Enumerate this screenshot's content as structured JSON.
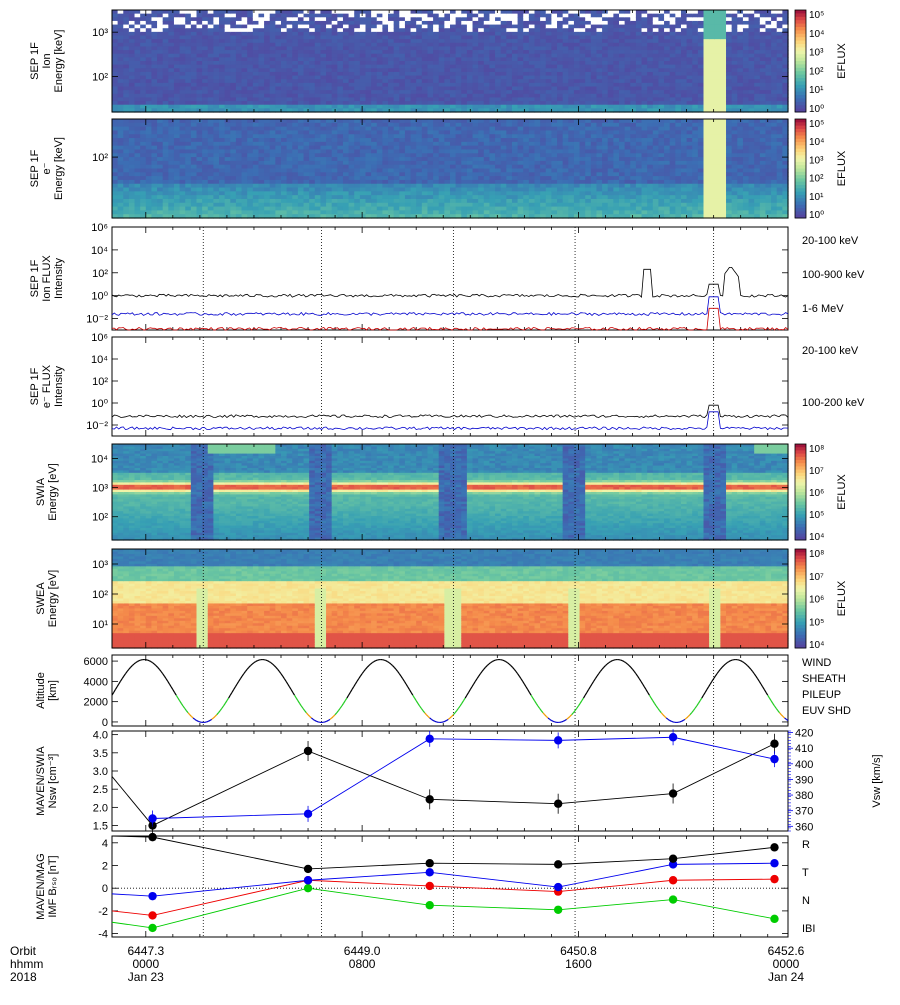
{
  "chart_data": [
    {
      "type": "heatmap",
      "panel": "sep-ion-spectrogram",
      "ylabel_lines": [
        "SEP 1F",
        "Ion",
        "Energy [keV]"
      ],
      "yticks": [
        "10³",
        "10²"
      ],
      "colorbar_label": "EFLUX",
      "colorbar_ticks": [
        "10⁵",
        "10⁴",
        "10³",
        "10²",
        "10¹",
        "10⁰"
      ]
    },
    {
      "type": "heatmap",
      "panel": "sep-electron-spectrogram",
      "ylabel_lines": [
        "SEP 1F",
        "e⁻",
        "Energy [keV]"
      ],
      "yticks": [
        "10²"
      ],
      "colorbar_label": "EFLUX",
      "colorbar_ticks": [
        "10⁵",
        "10⁴",
        "10³",
        "10²",
        "10¹",
        "10⁰"
      ]
    },
    {
      "type": "line",
      "panel": "sep-ion-flux",
      "ylabel_lines": [
        "SEP 1F",
        "Ion FLUX",
        "Intensity"
      ],
      "yticks": [
        "10⁶",
        "10⁴",
        "10²",
        "10⁰",
        "10⁻²"
      ],
      "ylog_range": [
        -3,
        6
      ],
      "series": [
        {
          "name": "20-100 keV",
          "color": "#000000",
          "base_log": 0.0
        },
        {
          "name": "100-900 keV",
          "color": "#0000cc",
          "base_log": -1.6
        },
        {
          "name": "1-6 MeV",
          "color": "#cc0000",
          "base_log": -2.9
        }
      ]
    },
    {
      "type": "line",
      "panel": "sep-electron-flux",
      "ylabel_lines": [
        "SEP 1F",
        "e⁻ FLUX",
        "Intensity"
      ],
      "yticks": [
        "10⁶",
        "10⁴",
        "10²",
        "10⁰",
        "10⁻²"
      ],
      "ylog_range": [
        -3,
        6
      ],
      "series": [
        {
          "name": "20-100 keV",
          "color": "#000000",
          "base_log": -1.2
        },
        {
          "name": "100-200 keV",
          "color": "#0000cc",
          "base_log": -2.3
        }
      ]
    },
    {
      "type": "heatmap",
      "panel": "swia-spectrogram",
      "ylabel_lines": [
        "SWIA",
        "Energy [eV]"
      ],
      "yticks": [
        "10⁴",
        "10³",
        "10²"
      ],
      "colorbar_label": "EFLUX",
      "colorbar_ticks": [
        "10⁸",
        "10⁷",
        "10⁶",
        "10⁵",
        "10⁴"
      ]
    },
    {
      "type": "heatmap",
      "panel": "swea-spectrogram",
      "ylabel_lines": [
        "SWEA",
        "Energy [eV]"
      ],
      "yticks": [
        "10³",
        "10²",
        "10¹"
      ],
      "colorbar_label": "EFLUX",
      "colorbar_ticks": [
        "10⁸",
        "10⁷",
        "10⁶",
        "10⁵",
        "10⁴"
      ]
    },
    {
      "type": "line",
      "panel": "altitude",
      "ylabel_lines": [
        "Altitude",
        "[km]"
      ],
      "yticks": [
        "6000",
        "4000",
        "2000",
        "0"
      ],
      "ylim": [
        -400,
        6600
      ],
      "region_legend": [
        {
          "name": "WIND",
          "color": "#000000"
        },
        {
          "name": "SHEATH",
          "color": "#22cc22"
        },
        {
          "name": "PILEUP",
          "color": "#ee9900"
        },
        {
          "name": "EUV SHD",
          "color": "#0000cc"
        }
      ]
    },
    {
      "type": "line",
      "panel": "swia-density-velocity",
      "ylabel_lines": [
        "MAVEN/SWIA",
        "Nsw [cm⁻³]"
      ],
      "right_ylabel": "Vsw [km/s]",
      "yticks": [
        "4.0",
        "3.5",
        "3.0",
        "2.5",
        "2.0",
        "1.5"
      ],
      "ylim": [
        1.35,
        4.1
      ],
      "right_yticks": [
        "420",
        "410",
        "400",
        "390",
        "380",
        "370",
        "360"
      ],
      "right_ylim": [
        357,
        421
      ],
      "x": [
        0.1,
        2.4,
        4.2,
        6.1,
        7.8,
        9.3
      ],
      "series": [
        {
          "name": "Nsw",
          "color": "#000000",
          "values": [
            1.5,
            3.55,
            2.22,
            2.1,
            2.38,
            3.75
          ]
        },
        {
          "name": "Vsw",
          "color": "#0000ee",
          "values": [
            365,
            368,
            416,
            415,
            417,
            403
          ]
        }
      ]
    },
    {
      "type": "line",
      "panel": "mag-imf",
      "ylabel_lines": [
        "MAVEN/MAG",
        "IMF Bᵣₛₒ [nT]"
      ],
      "yticks": [
        "4",
        "2",
        "0",
        "-2",
        "-4"
      ],
      "ylim": [
        -4.3,
        4.6
      ],
      "x": [
        0.1,
        2.4,
        4.2,
        6.1,
        7.8,
        9.3
      ],
      "series": [
        {
          "name": "R",
          "color": "#0000ee",
          "values": [
            -0.7,
            0.7,
            1.4,
            0.1,
            2.1,
            2.2
          ]
        },
        {
          "name": "T",
          "color": "#00cc00",
          "values": [
            -3.5,
            0.0,
            -1.5,
            -1.9,
            -1.0,
            -2.7
          ]
        },
        {
          "name": "N",
          "color": "#ee0000",
          "values": [
            -2.4,
            0.7,
            0.2,
            -0.3,
            0.7,
            0.8
          ]
        },
        {
          "name": "IBI",
          "color": "#000000",
          "values": [
            4.5,
            1.7,
            2.2,
            2.1,
            2.6,
            3.6
          ]
        }
      ]
    }
  ],
  "xaxis": {
    "range_hours": [
      -0.5,
      9.5
    ],
    "dotted_hours": [
      0.85,
      2.6,
      4.55,
      6.35,
      8.4
    ],
    "row_labels": [
      "Orbit",
      "hhmm",
      "2018"
    ],
    "ticks": [
      {
        "hour": 0.0,
        "orbit": "6447.3",
        "hhmm": "0000",
        "date": "Jan 23"
      },
      {
        "hour": 3.2,
        "orbit": "6449.0",
        "hhmm": "0800",
        "date": ""
      },
      {
        "hour": 6.4,
        "orbit": "6450.8",
        "hhmm": "1600",
        "date": ""
      },
      {
        "hour": 9.6,
        "orbit": "6452.6",
        "hhmm": "0000",
        "date": "Jan 24"
      }
    ]
  }
}
